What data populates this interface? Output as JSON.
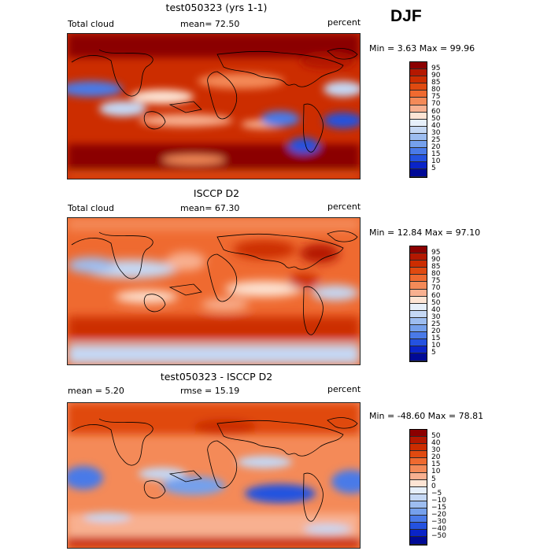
{
  "season": "DJF",
  "panels": [
    {
      "title": "test050323 (yrs 1-1)",
      "left": "Total cloud",
      "mid": "mean=  72.50",
      "right": "percent",
      "minmax": "Min =   3.63 Max =  99.96",
      "colorbar": {
        "labels": [
          "95",
          "90",
          "85",
          "80",
          "75",
          "70",
          "60",
          "50",
          "40",
          "30",
          "25",
          "20",
          "15",
          "10",
          "5"
        ],
        "colors": [
          "#8b0000",
          "#b41800",
          "#cc2d00",
          "#e04a10",
          "#ef6a30",
          "#f48a58",
          "#f8b090",
          "#fde4d4",
          "#e6effa",
          "#c5d8f4",
          "#9dbdf0",
          "#75a0ec",
          "#4a7ae8",
          "#2452e0",
          "#0a24c8",
          "#000a96"
        ]
      },
      "map": "model_total_cloud"
    },
    {
      "title": "ISCCP D2",
      "left": "Total cloud",
      "mid": "mean=  67.30",
      "right": "percent",
      "minmax": "Min =  12.84 Max =  97.10",
      "colorbar": {
        "labels": [
          "95",
          "90",
          "85",
          "80",
          "75",
          "70",
          "60",
          "50",
          "40",
          "30",
          "25",
          "20",
          "15",
          "10",
          "5"
        ],
        "colors": [
          "#8b0000",
          "#b41800",
          "#cc2d00",
          "#e04a10",
          "#ef6a30",
          "#f48a58",
          "#f8b090",
          "#fde4d4",
          "#e6effa",
          "#c5d8f4",
          "#9dbdf0",
          "#75a0ec",
          "#4a7ae8",
          "#2452e0",
          "#0a24c8",
          "#000a96"
        ]
      },
      "map": "obs_total_cloud"
    },
    {
      "title": "test050323 - ISCCP D2",
      "left": "mean =    5.20",
      "mid": "rmse =   15.19",
      "right": "percent",
      "minmax": "Min = -48.60 Max =  78.81",
      "colorbar": {
        "labels": [
          "50",
          "40",
          "30",
          "20",
          "15",
          "10",
          "5",
          "0",
          "−5",
          "−10",
          "−15",
          "−20",
          "−30",
          "−40",
          "−50"
        ],
        "colors": [
          "#8b0000",
          "#b41800",
          "#cc2d00",
          "#e04a10",
          "#ef6a30",
          "#f48a58",
          "#f8b090",
          "#fde4d4",
          "#e6effa",
          "#c5d8f4",
          "#9dbdf0",
          "#75a0ec",
          "#4a7ae8",
          "#2452e0",
          "#0a24c8",
          "#000a96"
        ]
      },
      "map": "difference"
    }
  ]
}
